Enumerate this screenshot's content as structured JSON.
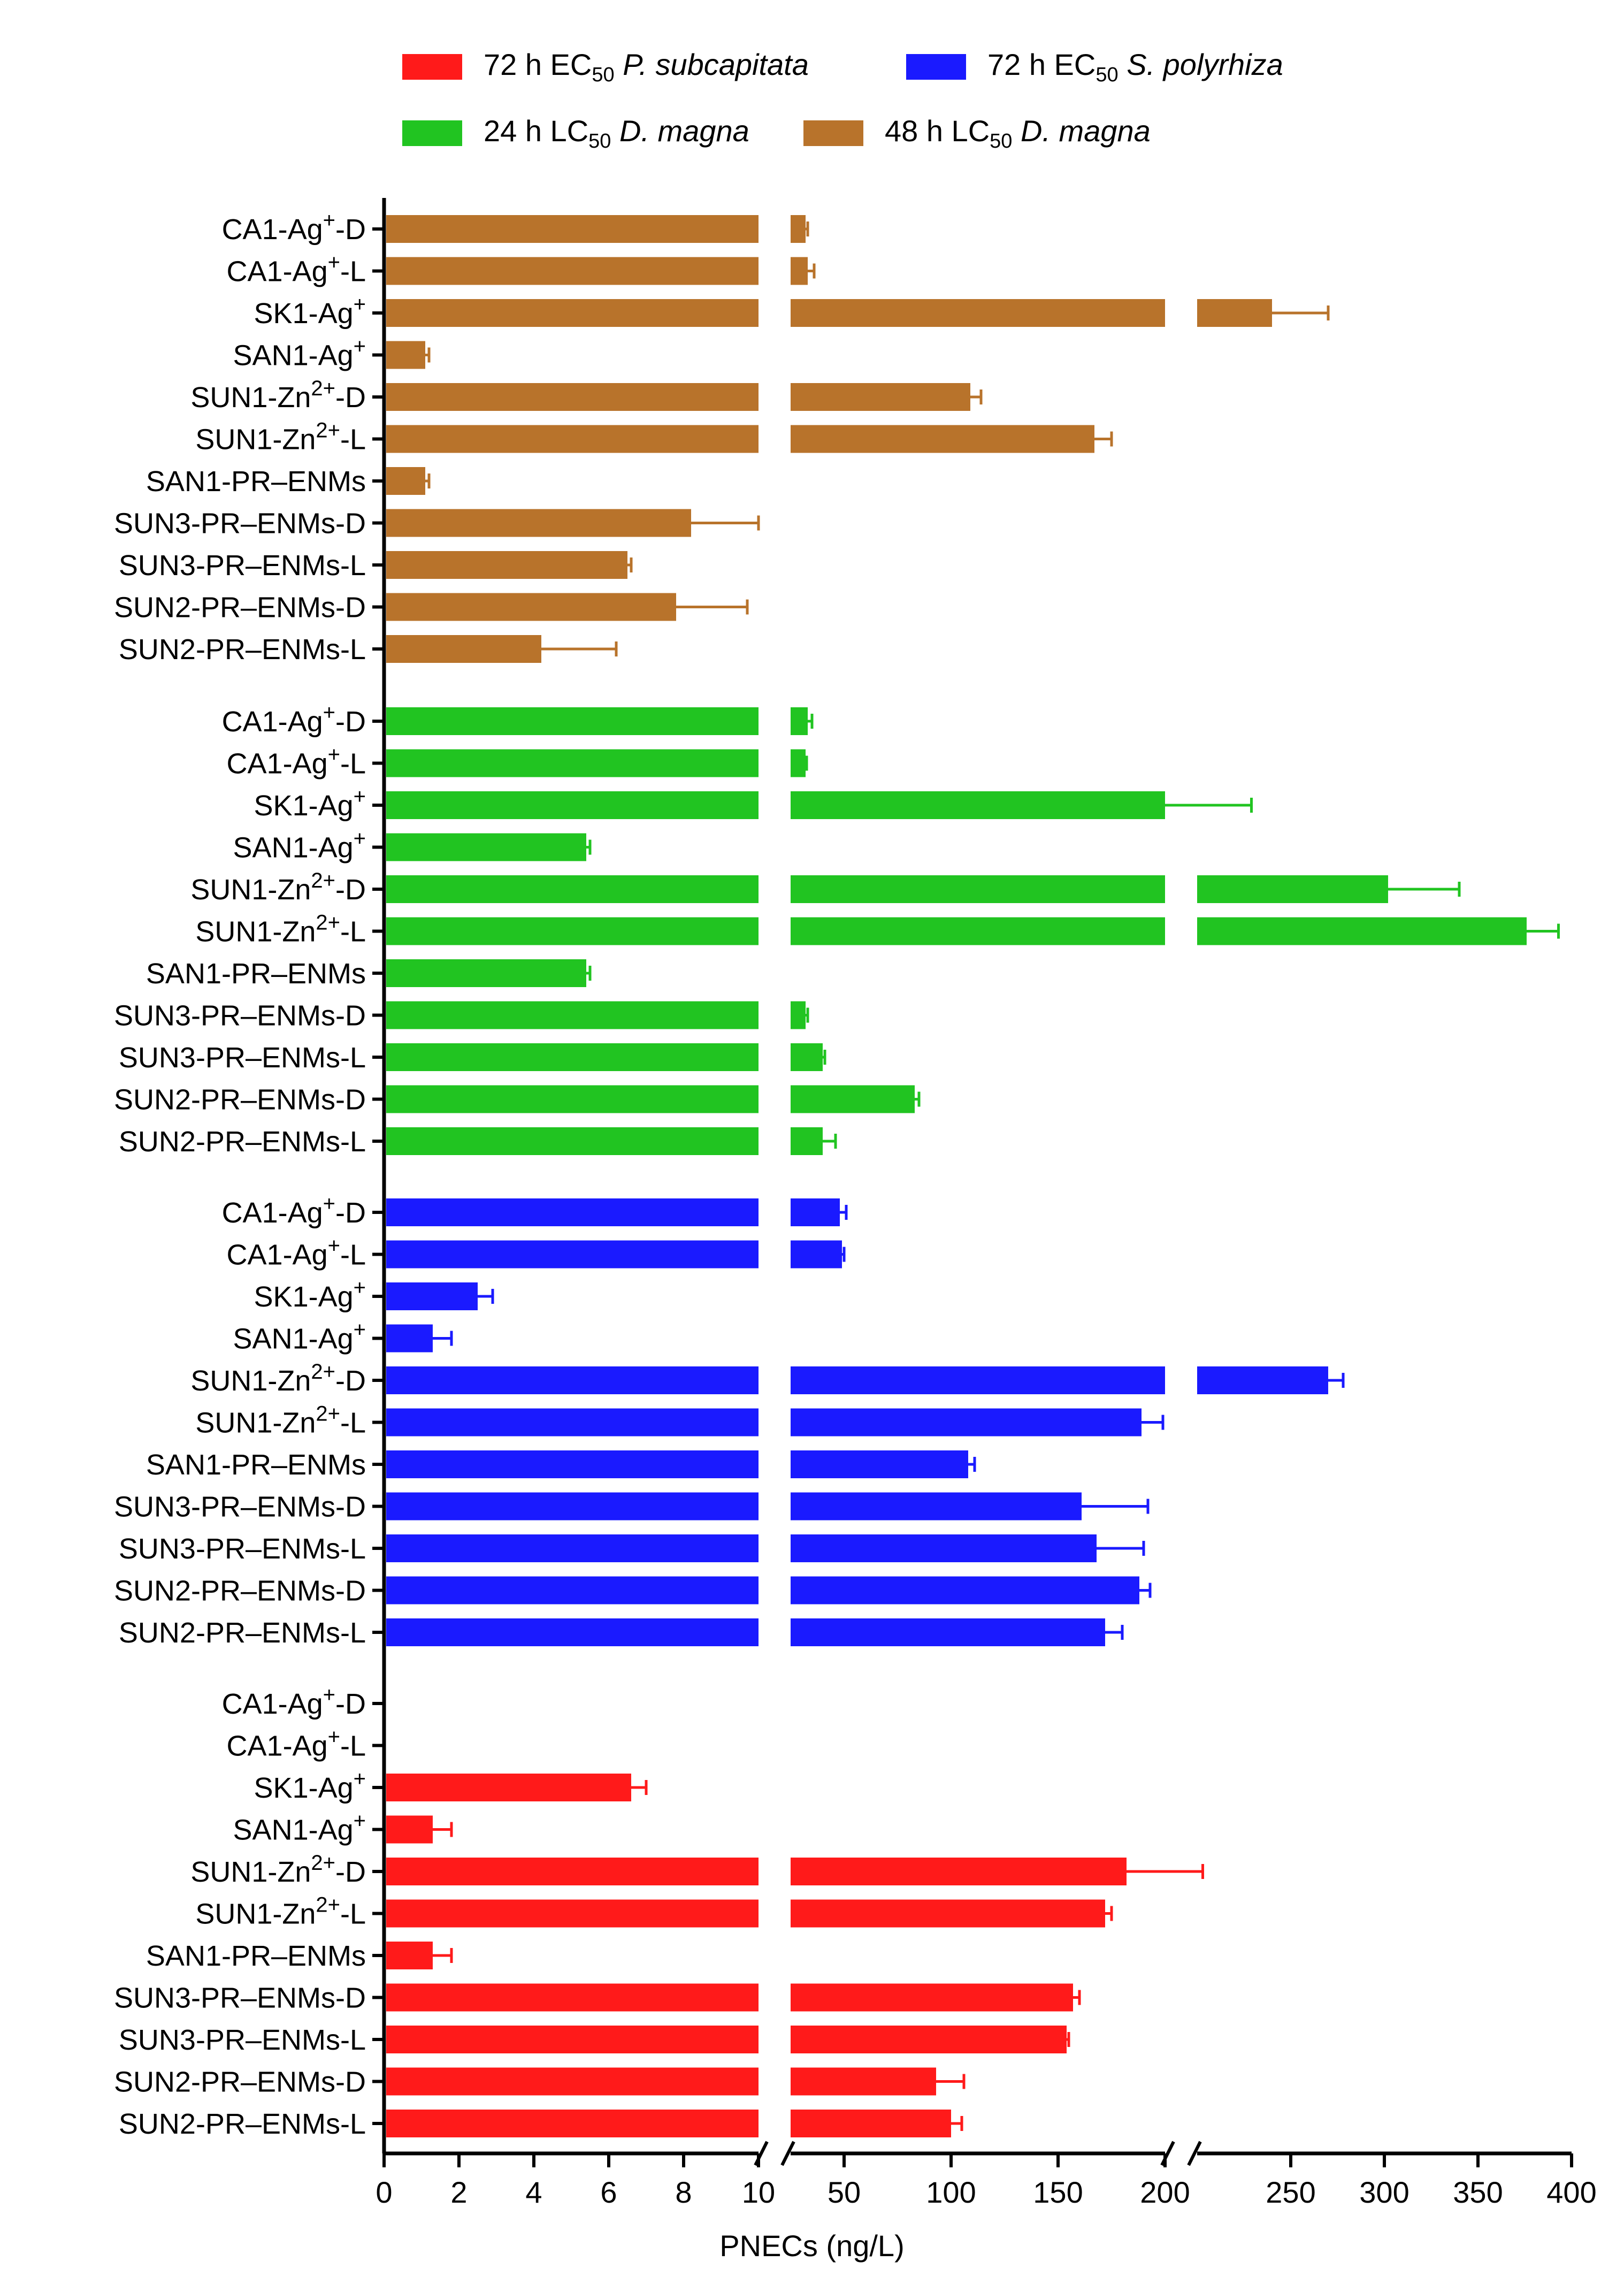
{
  "chart_data": {
    "type": "bar",
    "orientation": "horizontal",
    "xlabel": "PNECs (ng/L)",
    "x_axis_segments": [
      {
        "range": [
          0,
          10
        ],
        "ticks": [
          "0",
          "2",
          "4",
          "6",
          "8",
          "10"
        ]
      },
      {
        "range": [
          25,
          200
        ],
        "ticks": [
          "50",
          "100",
          "150",
          "200"
        ]
      },
      {
        "range": [
          200,
          400
        ],
        "ticks": [
          "250",
          "300",
          "350",
          "400"
        ]
      }
    ],
    "categories": [
      "CA1-Ag+-D",
      "CA1-Ag+-L",
      "SK1-Ag+",
      "SAN1-Ag+",
      "SUN1-Zn2+-D",
      "SUN1-Zn2+-L",
      "SAN1-PR–ENMs",
      "SUN3-PR–ENMs-D",
      "SUN3-PR–ENMs-L",
      "SUN2-PR–ENMs-D",
      "SUN2-PR–ENMs-L"
    ],
    "series": [
      {
        "name": "48 h LC50 D. magna",
        "color": "#b8732b",
        "values": [
          32,
          33,
          240,
          1.1,
          109,
          167,
          1.1,
          8.2,
          6.5,
          7.8,
          4.2
        ],
        "errors": [
          1,
          3,
          30,
          0.1,
          5,
          8,
          0.1,
          1.8,
          0.1,
          1.9,
          2.0
        ]
      },
      {
        "name": "24 h LC50 D. magna",
        "color": "#21c421",
        "values": [
          33,
          32,
          200,
          5.4,
          302,
          376,
          5.4,
          32,
          40,
          83,
          40
        ],
        "errors": [
          2,
          0.5,
          29,
          0.1,
          38,
          17,
          0.1,
          1,
          1,
          2,
          6
        ]
      },
      {
        "name": "72 h EC50 S. polyrhiza",
        "color": "#1a1aff",
        "values": [
          48,
          49,
          2.5,
          1.3,
          270,
          189,
          108,
          161,
          168,
          188,
          172
        ],
        "errors": [
          3,
          1,
          0.4,
          0.5,
          8,
          10,
          3,
          31,
          22,
          5,
          8
        ]
      },
      {
        "name": "72 h EC50 P. subcapitata",
        "color": "#ff1a1a",
        "values": [
          null,
          null,
          6.6,
          1.3,
          182,
          172,
          1.3,
          157,
          154,
          93,
          100
        ],
        "errors": [
          null,
          null,
          0.4,
          0.5,
          21,
          3,
          0.5,
          3,
          1,
          13,
          5
        ]
      }
    ],
    "legend": [
      {
        "name": "72 h EC50 P. subcapitata",
        "parts": [
          "72 h EC",
          "50",
          "P. subcapitata"
        ],
        "color": "#ff1a1a"
      },
      {
        "name": "72 h EC50 S. polyrhiza",
        "parts": [
          "72 h EC",
          "50",
          "S. polyrhiza"
        ],
        "color": "#1a1aff"
      },
      {
        "name": "24 h LC50 D. magna",
        "parts": [
          "24 h LC",
          "50",
          "D. magna"
        ],
        "color": "#21c421"
      },
      {
        "name": "48 h LC50 D. magna",
        "parts": [
          "48 h LC",
          "50",
          "D. magna"
        ],
        "color": "#b8732b"
      }
    ],
    "legend_placement": "top"
  }
}
